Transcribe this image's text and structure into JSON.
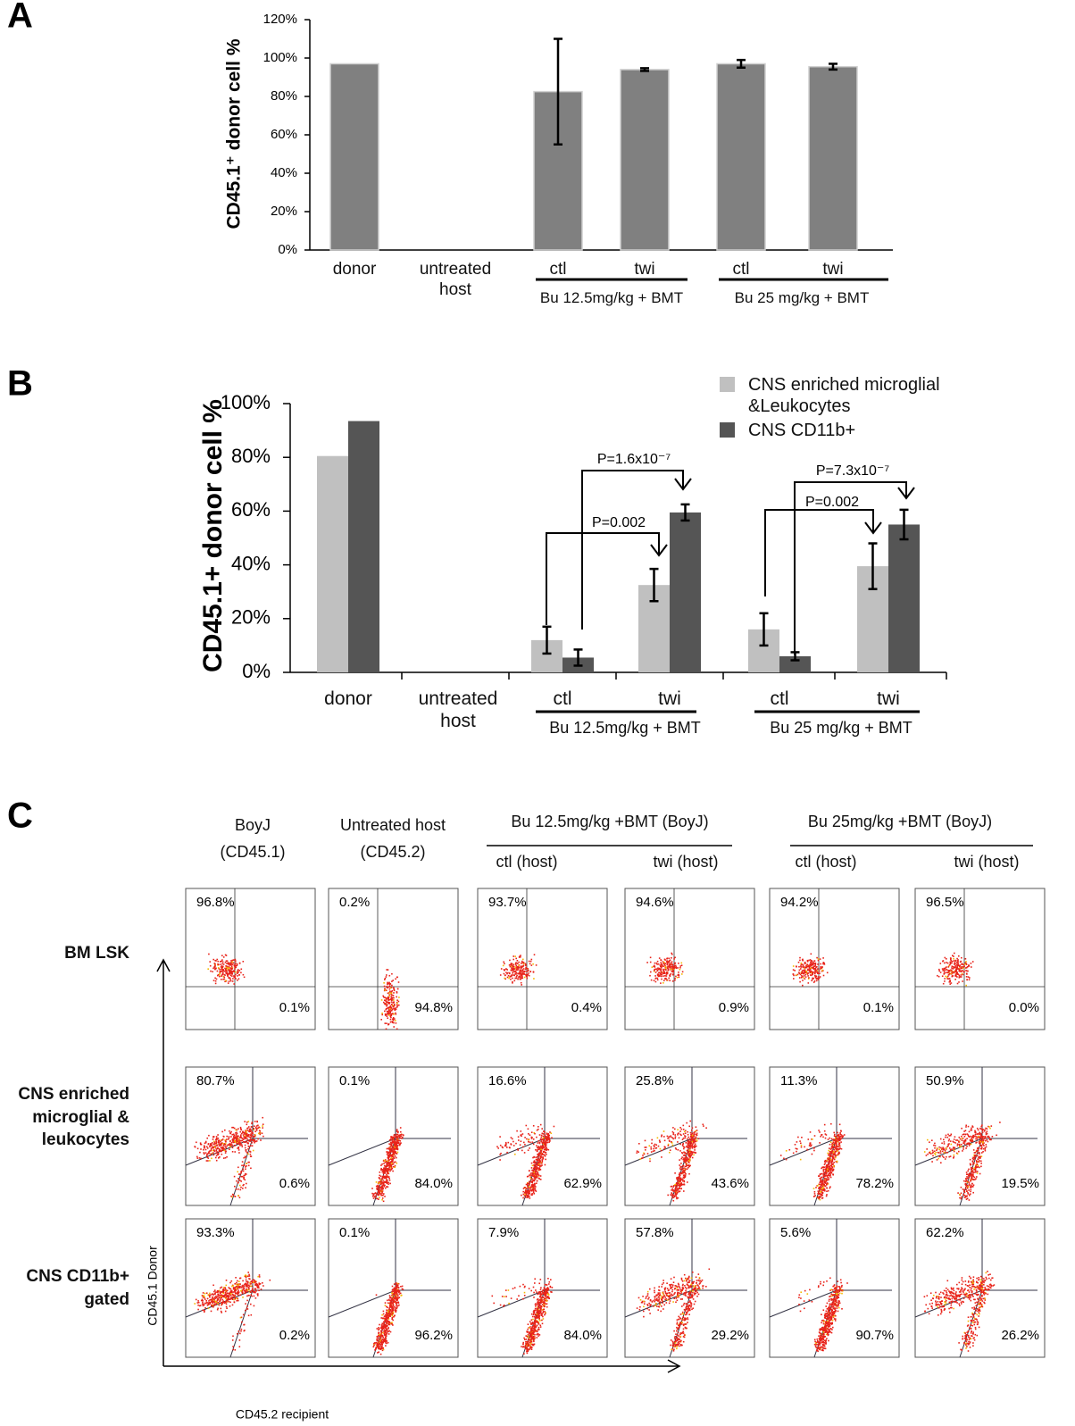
{
  "chart_data": [
    {
      "type": "bar",
      "panel": "A",
      "ylabel": "CD45.1⁺ donor cell %",
      "categories": [
        "donor",
        "untreated host",
        "ctl",
        "twi",
        "ctl",
        "twi"
      ],
      "values": [
        97,
        0,
        82.5,
        94,
        97,
        95.5
      ],
      "errors": [
        null,
        null,
        27.5,
        0.7,
        2,
        1.5
      ],
      "color": "#808080",
      "groups": [
        "Bu 12.5mg/kg + BMT",
        "Bu 25 mg/kg + BMT"
      ],
      "ylim": [
        0,
        120
      ],
      "yticks": [
        {
          "value": 0,
          "label": "0%"
        },
        {
          "value": 20,
          "label": "20%"
        },
        {
          "value": 40,
          "label": "40%"
        },
        {
          "value": 60,
          "label": "60%"
        },
        {
          "value": 80,
          "label": "80%"
        },
        {
          "value": 100,
          "label": "100%"
        },
        {
          "value": 120,
          "label": "120%"
        }
      ]
    },
    {
      "type": "grouped-bar",
      "panel": "B",
      "ylabel": "CD45.1+ donor cell %",
      "categories": [
        "donor",
        "untreated host",
        "ctl",
        "twi",
        "ctl",
        "twi"
      ],
      "series": [
        {
          "name": "CNS enriched microglial &Leukocytes",
          "color": "#c0c0c0",
          "values": [
            80.5,
            0,
            12,
            32.5,
            16,
            39.5
          ],
          "errors": [
            null,
            null,
            5,
            6,
            6,
            8.5
          ]
        },
        {
          "name": "CNS CD11b+",
          "color": "#555555",
          "values": [
            93.5,
            0,
            5.5,
            59.5,
            6,
            55
          ],
          "errors": [
            null,
            null,
            3,
            3,
            1.5,
            5.5
          ]
        }
      ],
      "groups": [
        "Bu 12.5mg/kg + BMT",
        "Bu 25 mg/kg + BMT"
      ],
      "annotations": [
        "P=1.6x10⁻⁷",
        "P=0.002",
        "P=7.3x10⁻⁷",
        "P=0.002"
      ],
      "ylim": [
        0,
        100
      ],
      "yticks": [
        {
          "value": 0,
          "label": "0%"
        },
        {
          "value": 20,
          "label": "20%"
        },
        {
          "value": 40,
          "label": "40%"
        },
        {
          "value": 60,
          "label": "60%"
        },
        {
          "value": 80,
          "label": "80%"
        },
        {
          "value": 100,
          "label": "100%"
        }
      ]
    }
  ],
  "panel_c": {
    "panel": "C",
    "columns": [
      "BoyJ (CD45.1)",
      "Untreated host (CD45.2)"
    ],
    "groups": [
      "Bu 12.5mg/kg +BMT (BoyJ)",
      "Bu 25mg/kg +BMT (BoyJ)"
    ],
    "subcolumns": [
      "ctl (host)",
      "twi (host)",
      "ctl (host)",
      "twi (host)"
    ],
    "rows": [
      "BM LSK",
      "CNS enriched microglial & leukocytes",
      "CNS CD11b+ gated"
    ],
    "top": [
      [
        "96.8%",
        "0.2%",
        "93.7%",
        "94.6%",
        "94.2%",
        "96.5%"
      ],
      [
        "80.7%",
        "0.1%",
        "16.6%",
        "25.8%",
        "11.3%",
        "50.9%"
      ],
      [
        "93.3%",
        "0.1%",
        "7.9%",
        "57.8%",
        "5.6%",
        "62.2%"
      ]
    ],
    "bottom": [
      [
        "0.1%",
        "94.8%",
        "0.4%",
        "0.9%",
        "0.1%",
        "0.0%"
      ],
      [
        "0.6%",
        "84.0%",
        "62.9%",
        "43.6%",
        "78.2%",
        "19.5%"
      ],
      [
        "0.2%",
        "96.2%",
        "84.0%",
        "29.2%",
        "90.7%",
        "26.2%"
      ]
    ],
    "yaxis": "CD45.1  Donor",
    "xaxis": "CD45.2  recipient"
  }
}
